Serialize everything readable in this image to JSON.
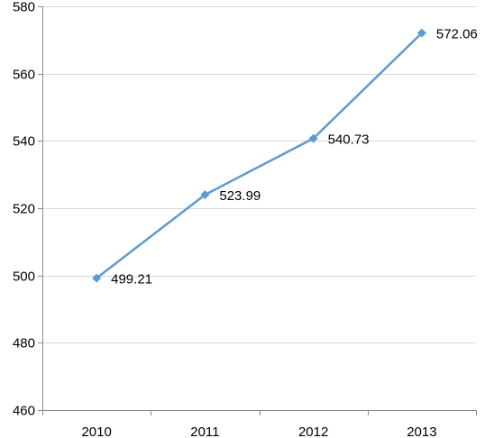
{
  "chart_data": {
    "type": "line",
    "title": "",
    "xlabel": "",
    "ylabel": "",
    "categories": [
      "2010",
      "2011",
      "2012",
      "2013"
    ],
    "series": [
      {
        "values": [
          499.21,
          523.99,
          540.73,
          572.06
        ],
        "labels": [
          "499.21",
          "523.99",
          "540.73",
          "572.06"
        ],
        "color": "#5b9bd5",
        "marker": "diamond"
      }
    ],
    "ylim": [
      460,
      580
    ],
    "yticks": [
      "460",
      "480",
      "500",
      "520",
      "540",
      "560",
      "580"
    ],
    "grid": true,
    "legend": "none"
  }
}
